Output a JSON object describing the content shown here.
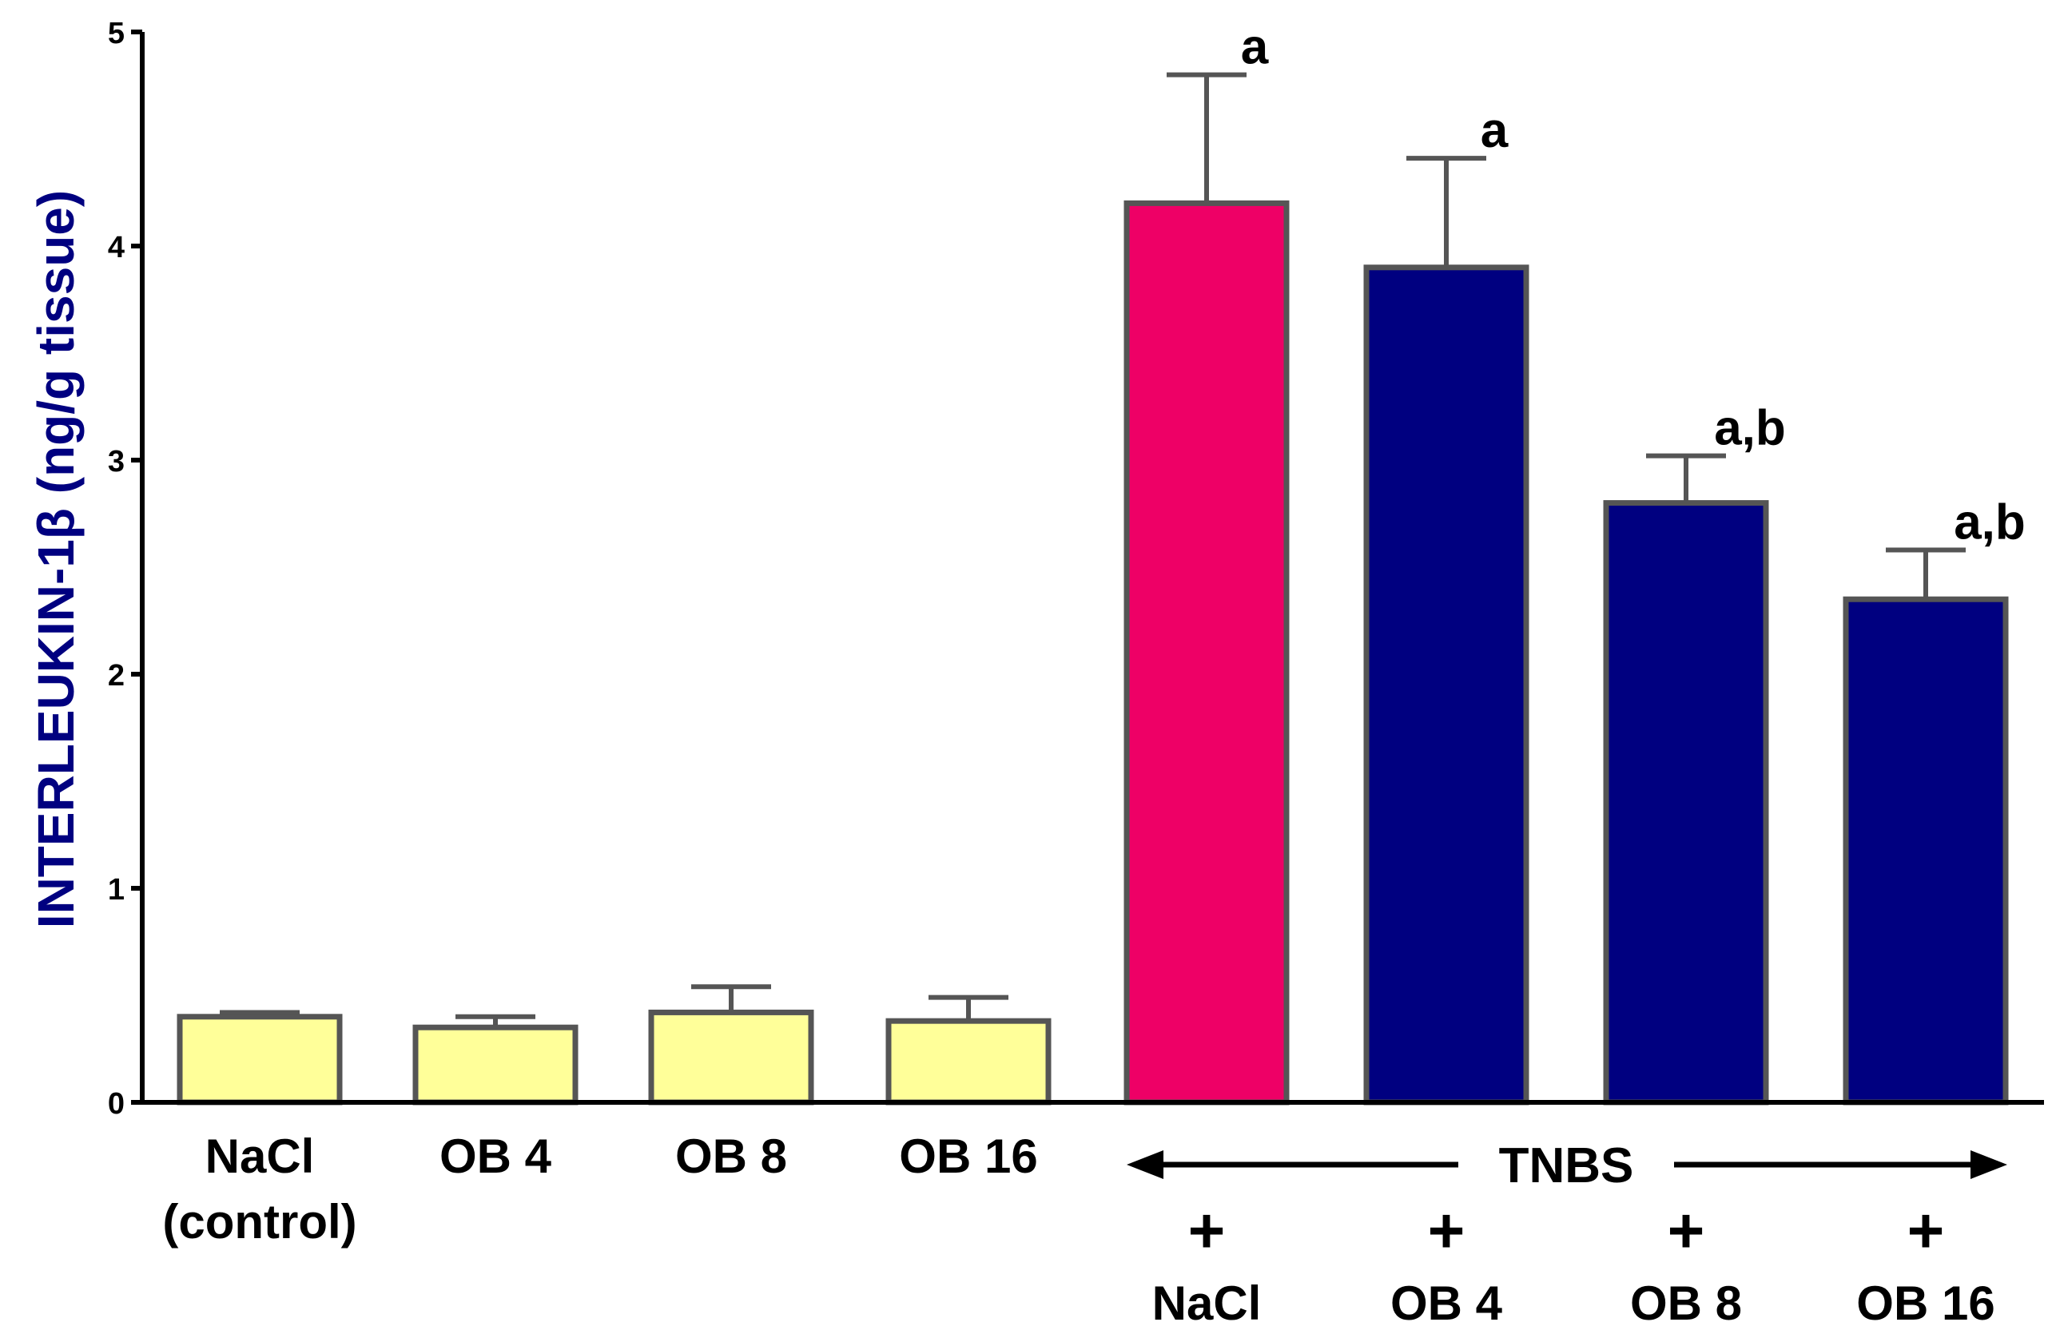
{
  "chart_data": {
    "type": "bar",
    "title": "",
    "xlabel": "",
    "ylabel": "INTERLEUKIN-1β (ng/g tissue)",
    "ylim": [
      0,
      5
    ],
    "yticks": [
      "0",
      "1",
      "2",
      "3",
      "4",
      "5"
    ],
    "categories": [
      [
        "NaCl",
        "(control)"
      ],
      [
        "OB 4"
      ],
      [
        "OB 8"
      ],
      [
        "OB 16"
      ],
      [
        "+",
        "NaCl"
      ],
      [
        "+",
        "OB 4"
      ],
      [
        "+",
        "OB 8"
      ],
      [
        "+",
        "OB 16"
      ]
    ],
    "values": [
      0.4,
      0.35,
      0.42,
      0.38,
      4.2,
      3.9,
      2.8,
      2.35
    ],
    "errors": [
      0.02,
      0.05,
      0.12,
      0.11,
      0.6,
      0.51,
      0.22,
      0.23
    ],
    "annotations": [
      "",
      "",
      "",
      "",
      "a",
      "a",
      "a,b",
      "a,b"
    ],
    "group_label": "TNBS",
    "colors": [
      "#ffff99",
      "#ffff99",
      "#ffff99",
      "#ffff99",
      "#ee0066",
      "#000080",
      "#000080",
      "#000080"
    ],
    "bar_edge_color": "#555555",
    "axis_color": "#000000",
    "ylabel_color": "#000080",
    "grid": false,
    "legend": "none"
  }
}
